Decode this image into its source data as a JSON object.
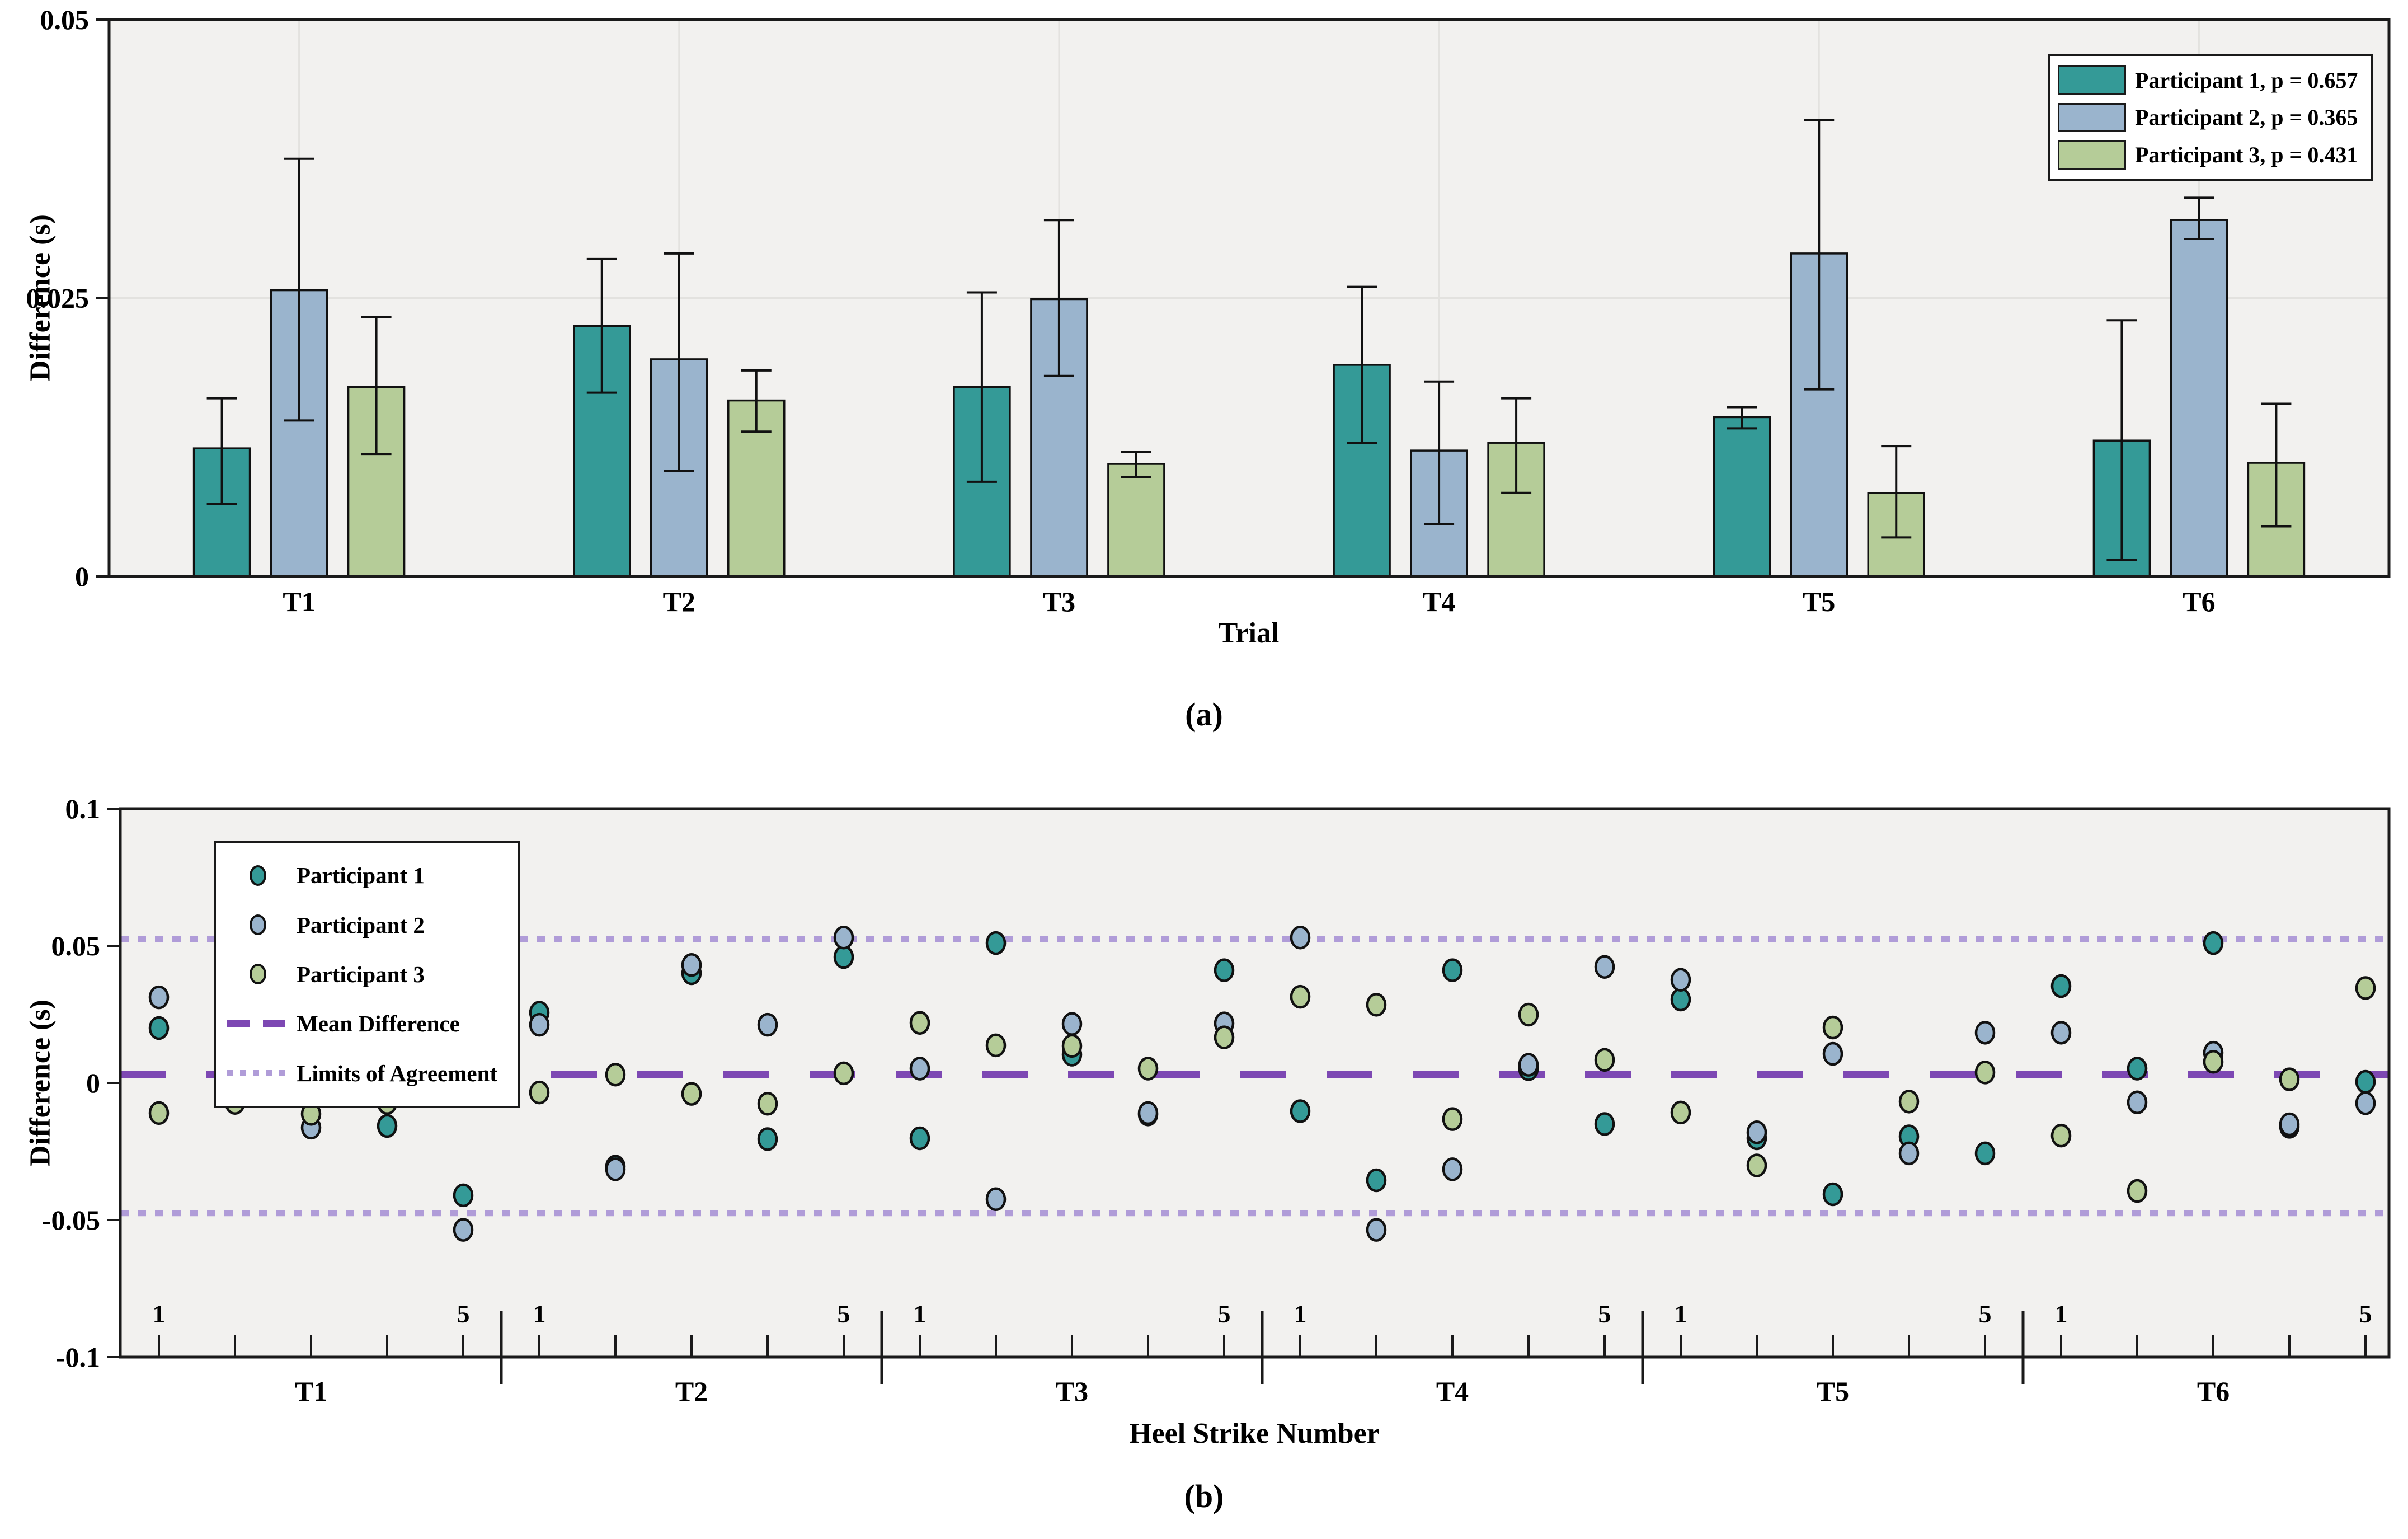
{
  "figure": {
    "caption_a": "(a)",
    "caption_b": "(b)"
  },
  "colors": {
    "figure_background": "#ffffff",
    "plot_background": "#f2f1ef",
    "gridline": "#e3e2df",
    "axis": "#1a1a1a",
    "participant1": "#349a97",
    "participant2": "#9ab4cd",
    "participant3": "#b5cc98",
    "mean_line": "#7d48b3",
    "loa_line": "#b09cd8"
  },
  "chart_data": [
    {
      "type": "bar",
      "panel": "a",
      "title": "",
      "xlabel": "Trial",
      "ylabel": "Difference (s)",
      "ylim": [
        0,
        0.05
      ],
      "yticks": [
        {
          "v": 0,
          "label": "0"
        },
        {
          "v": 0.025,
          "label": "0.025"
        },
        {
          "v": 0.05,
          "label": "0.05"
        }
      ],
      "grid": "vertical-at-group-centers-and-horizontal-at-0.025",
      "legend_position": "top-right",
      "categories": [
        "T1",
        "T2",
        "T3",
        "T4",
        "T5",
        "T6"
      ],
      "series": [
        {
          "name": "Participant 1, p = 0.657",
          "color": "#349a97",
          "values": [
            0.0115,
            0.0225,
            0.017,
            0.019,
            0.0143,
            0.0122
          ],
          "err_low": [
            0.0065,
            0.0165,
            0.0085,
            0.012,
            0.0133,
            0.0015
          ],
          "err_high": [
            0.016,
            0.0285,
            0.0255,
            0.026,
            0.0152,
            0.023
          ]
        },
        {
          "name": "Participant 2, p = 0.365",
          "color": "#9ab4cd",
          "values": [
            0.0257,
            0.0195,
            0.0249,
            0.0113,
            0.029,
            0.032
          ],
          "err_low": [
            0.014,
            0.0095,
            0.018,
            0.0047,
            0.0168,
            0.0303
          ],
          "err_high": [
            0.0375,
            0.029,
            0.032,
            0.0175,
            0.041,
            0.034
          ]
        },
        {
          "name": "Participant 3, p = 0.431",
          "color": "#b5cc98",
          "values": [
            0.017,
            0.0158,
            0.0101,
            0.012,
            0.0075,
            0.0102
          ],
          "err_low": [
            0.011,
            0.013,
            0.0089,
            0.0075,
            0.0035,
            0.0045
          ],
          "err_high": [
            0.0233,
            0.0185,
            0.0112,
            0.016,
            0.0117,
            0.0155
          ]
        }
      ]
    },
    {
      "type": "scatter",
      "panel": "b",
      "title": "",
      "xlabel": "Heel Strike Number",
      "ylabel": "Difference (s)",
      "ylim": [
        -0.1,
        0.1
      ],
      "yticks": [
        {
          "v": -0.1,
          "label": "-0.1"
        },
        {
          "v": -0.05,
          "label": "-0.05"
        },
        {
          "v": 0,
          "label": "0"
        },
        {
          "v": 0.05,
          "label": "0.05"
        },
        {
          "v": 0.1,
          "label": "0.1"
        }
      ],
      "grid": "off",
      "legend_position": "top-left",
      "trials": [
        "T1",
        "T2",
        "T3",
        "T4",
        "T5",
        "T6"
      ],
      "strikes_per_trial": 5,
      "strike_tick_labels": {
        "first": "1",
        "last": "5"
      },
      "mean_difference": 0.003,
      "loa_upper": 0.0525,
      "loa_lower": -0.0475,
      "mean_line_label": "Mean Difference",
      "loa_line_label": "Limits of Agreement",
      "mean_line_color": "#7d48b3",
      "loa_line_color": "#b09cd8",
      "series": [
        {
          "name": "Participant 1",
          "color": "#349a97",
          "values": [
            0.02,
            -0.005,
            0.0048,
            -0.0157,
            -0.041,
            0.0256,
            -0.0305,
            0.04,
            -0.0205,
            0.0459,
            -0.0202,
            0.051,
            0.0103,
            -0.0115,
            0.0411,
            -0.0103,
            -0.0355,
            0.0411,
            0.005,
            -0.015,
            0.0304,
            -0.0202,
            -0.0406,
            -0.0195,
            -0.0257,
            0.0353,
            0.0052,
            0.051,
            -0.016,
            0.0004
          ]
        },
        {
          "name": "Participant 2",
          "color": "#9ab4cd",
          "values": [
            0.0312,
            0.0051,
            -0.0163,
            0.0105,
            -0.0536,
            0.0212,
            -0.0315,
            0.043,
            0.0212,
            0.053,
            0.0052,
            -0.0424,
            0.0215,
            -0.011,
            0.0217,
            0.053,
            -0.0536,
            -0.0315,
            0.0066,
            0.0423,
            0.0376,
            -0.018,
            0.0106,
            -0.0257,
            0.0183,
            0.0183,
            -0.0071,
            0.011,
            -0.0151,
            -0.0074
          ]
        },
        {
          "name": "Participant 3",
          "color": "#b5cc98",
          "values": [
            -0.011,
            -0.0073,
            -0.0113,
            -0.0073,
            -0.0041,
            -0.0035,
            0.003,
            -0.004,
            -0.0076,
            0.0035,
            0.0219,
            0.0137,
            0.0135,
            0.0052,
            0.0166,
            0.0314,
            0.0285,
            -0.0132,
            0.0249,
            0.0084,
            -0.0108,
            -0.0301,
            0.0202,
            -0.0068,
            0.0038,
            -0.0192,
            -0.0394,
            0.0077,
            0.0013,
            0.0346
          ]
        }
      ]
    }
  ]
}
